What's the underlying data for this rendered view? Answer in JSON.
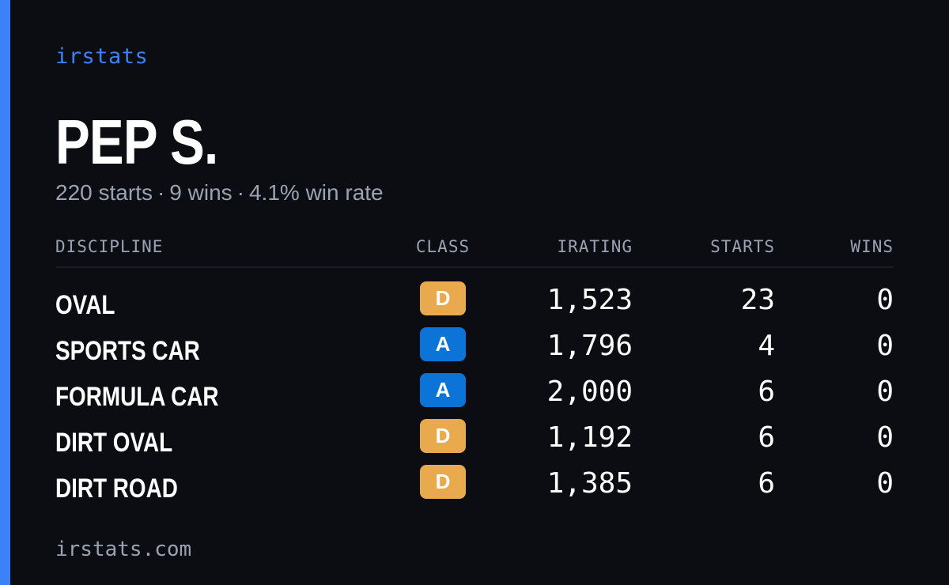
{
  "brand": "irstats",
  "driver": {
    "name": "PEP S.",
    "starts_text": "220 starts",
    "wins_text": "9 wins",
    "winrate_text": "4.1% win rate",
    "separator": "·"
  },
  "table": {
    "headers": {
      "discipline": "DISCIPLINE",
      "class": "CLASS",
      "irating": "IRATING",
      "starts": "STARTS",
      "wins": "WINS"
    },
    "rows": [
      {
        "discipline": "OVAL",
        "class": "D",
        "class_color": "#e9a94d",
        "irating": "1,523",
        "starts": "23",
        "wins": "0"
      },
      {
        "discipline": "SPORTS CAR",
        "class": "A",
        "class_color": "#0b74d6",
        "irating": "1,796",
        "starts": "4",
        "wins": "0"
      },
      {
        "discipline": "FORMULA CAR",
        "class": "A",
        "class_color": "#0b74d6",
        "irating": "2,000",
        "starts": "6",
        "wins": "0"
      },
      {
        "discipline": "DIRT OVAL",
        "class": "D",
        "class_color": "#e9a94d",
        "irating": "1,192",
        "starts": "6",
        "wins": "0"
      },
      {
        "discipline": "DIRT ROAD",
        "class": "D",
        "class_color": "#e9a94d",
        "irating": "1,385",
        "starts": "6",
        "wins": "0"
      }
    ]
  },
  "footer": "irstats.com",
  "colors": {
    "background": "#0b0d13",
    "accent": "#3b82f6",
    "muted": "#9aa3b2"
  }
}
